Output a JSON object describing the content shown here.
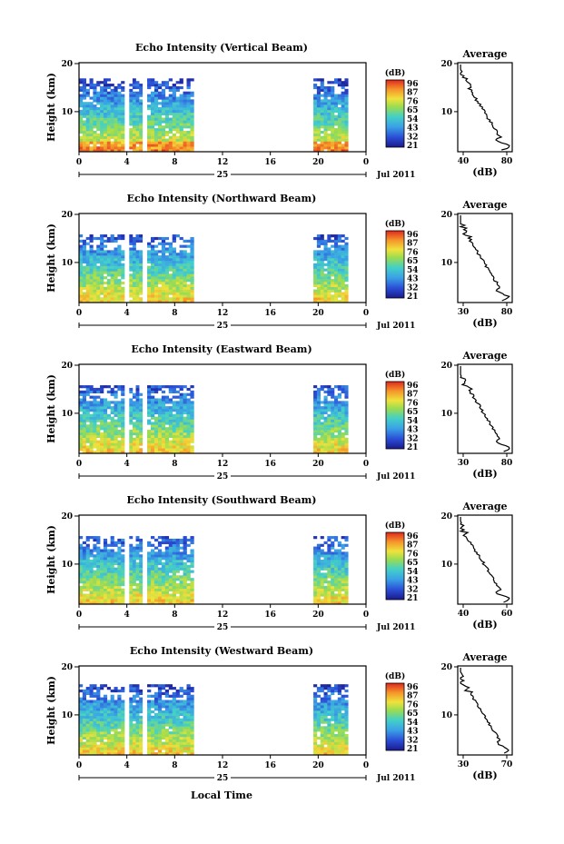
{
  "figure": {
    "xlabel": "Local Time",
    "date_label": "25",
    "month_label": "Jul 2011",
    "ylabel": "Height (km)",
    "colorbar_label": "(dB)",
    "avg_title": "Average",
    "avg_xlabel": "(dB)"
  },
  "chart_data": [
    {
      "type": "heatmap",
      "title": "Echo Intensity (Vertical Beam)",
      "x_ticks": [
        "0",
        "4",
        "8",
        "12",
        "16",
        "20",
        "0"
      ],
      "y_ticks": [
        "20",
        "10"
      ],
      "colorbar_ticks": [
        "96",
        "87",
        "76",
        "65",
        "54",
        "43",
        "32",
        "21"
      ],
      "data_segments_hours": [
        [
          0,
          3.8
        ],
        [
          4.2,
          5.3
        ],
        [
          5.7,
          9.6
        ],
        [
          19.6,
          22.5
        ]
      ],
      "profile": {
        "title": "Average",
        "xlabel": "(dB)",
        "x_ticks": [
          "40",
          "80"
        ],
        "y_ticks": [
          "20",
          "10"
        ]
      }
    },
    {
      "type": "heatmap",
      "title": "Echo Intensity (Northward Beam)",
      "x_ticks": [
        "0",
        "4",
        "8",
        "12",
        "16",
        "20",
        "0"
      ],
      "y_ticks": [
        "20",
        "10"
      ],
      "colorbar_ticks": [
        "96",
        "87",
        "76",
        "65",
        "54",
        "43",
        "32",
        "21"
      ],
      "data_segments_hours": [
        [
          0,
          3.8
        ],
        [
          4.2,
          5.3
        ],
        [
          5.7,
          9.6
        ],
        [
          19.6,
          22.5
        ]
      ],
      "profile": {
        "title": "Average",
        "xlabel": "(dB)",
        "x_ticks": [
          "30",
          "80"
        ],
        "y_ticks": [
          "20",
          "10"
        ]
      }
    },
    {
      "type": "heatmap",
      "title": "Echo Intensity (Eastward Beam)",
      "x_ticks": [
        "0",
        "4",
        "8",
        "12",
        "16",
        "20",
        "0"
      ],
      "y_ticks": [
        "20",
        "10"
      ],
      "colorbar_ticks": [
        "96",
        "87",
        "76",
        "65",
        "54",
        "43",
        "32",
        "21"
      ],
      "data_segments_hours": [
        [
          0,
          3.8
        ],
        [
          4.2,
          5.3
        ],
        [
          5.7,
          9.6
        ],
        [
          19.6,
          22.5
        ]
      ],
      "profile": {
        "title": "Average",
        "xlabel": "(dB)",
        "x_ticks": [
          "30",
          "80"
        ],
        "y_ticks": [
          "20",
          "10"
        ]
      }
    },
    {
      "type": "heatmap",
      "title": "Echo Intensity (Southward Beam)",
      "x_ticks": [
        "0",
        "4",
        "8",
        "12",
        "16",
        "20",
        "0"
      ],
      "y_ticks": [
        "20",
        "10"
      ],
      "colorbar_ticks": [
        "96",
        "87",
        "76",
        "65",
        "54",
        "43",
        "32",
        "21"
      ],
      "data_segments_hours": [
        [
          0,
          3.8
        ],
        [
          4.2,
          5.3
        ],
        [
          5.7,
          9.6
        ],
        [
          19.6,
          22.5
        ]
      ],
      "profile": {
        "title": "Average",
        "xlabel": "(dB)",
        "x_ticks": [
          "40",
          "60"
        ],
        "y_ticks": [
          "20",
          "10"
        ]
      }
    },
    {
      "type": "heatmap",
      "title": "Echo Intensity (Westward Beam)",
      "x_ticks": [
        "0",
        "4",
        "8",
        "12",
        "16",
        "20",
        "0"
      ],
      "y_ticks": [
        "20",
        "10"
      ],
      "colorbar_ticks": [
        "96",
        "87",
        "76",
        "65",
        "54",
        "43",
        "32",
        "21"
      ],
      "data_segments_hours": [
        [
          0,
          3.8
        ],
        [
          4.2,
          5.3
        ],
        [
          5.7,
          9.6
        ],
        [
          19.6,
          22.5
        ]
      ],
      "profile": {
        "title": "Average",
        "xlabel": "(dB)",
        "x_ticks": [
          "30",
          "70"
        ],
        "y_ticks": [
          "20",
          "10"
        ]
      }
    }
  ]
}
